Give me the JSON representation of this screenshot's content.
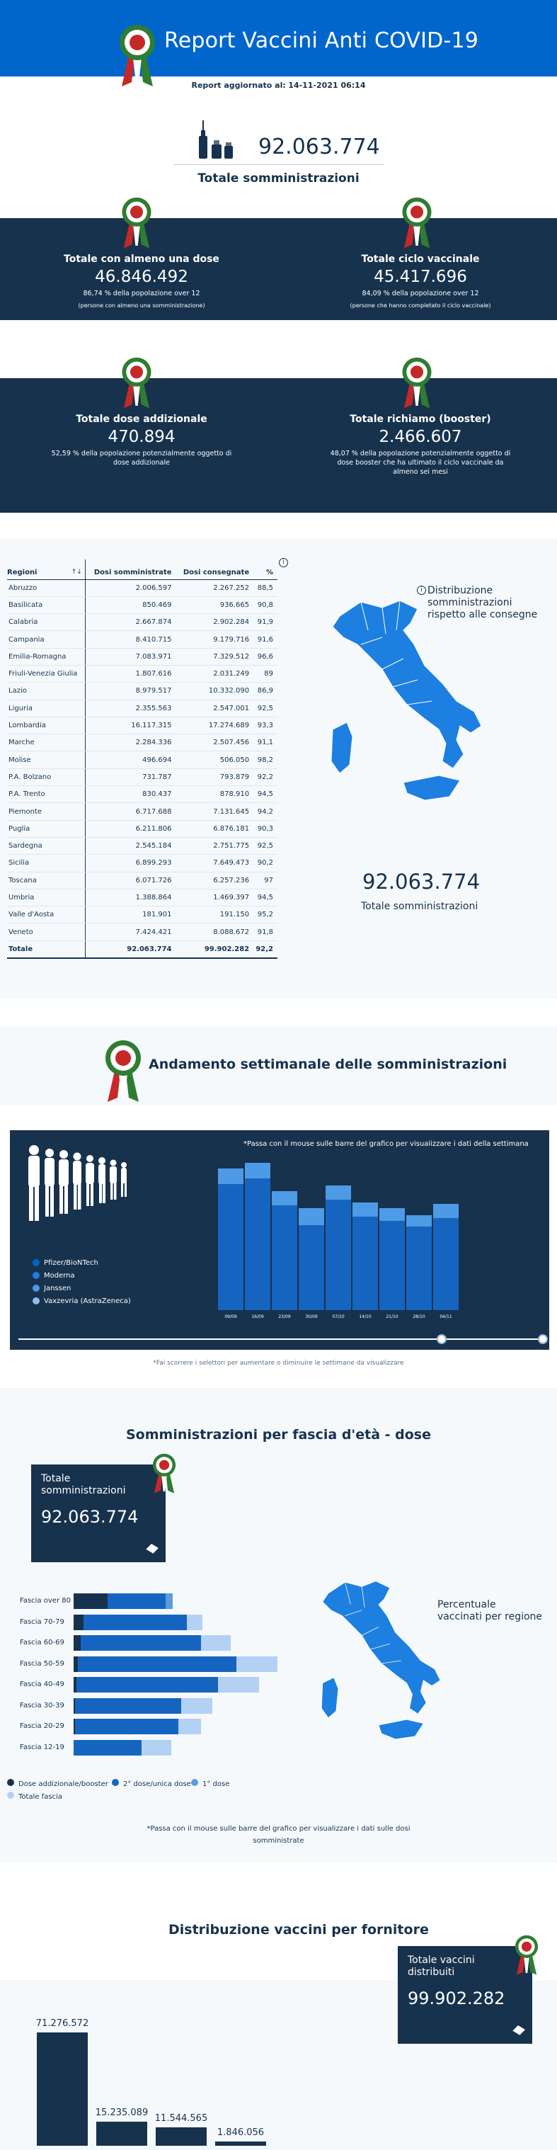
{
  "header": {
    "title": "Report Vaccini Anti COVID-19",
    "updated_label": "Report aggiornato al:",
    "updated_value": "14-11-2021 06:14"
  },
  "totals": {
    "somministrazioni_value": "92.063.774",
    "somministrazioni_label": "Totale somministrazioni"
  },
  "cards": [
    {
      "title": "Totale con almeno una dose",
      "value": "46.846.492",
      "sub": "86,74 % della popolazione over 12",
      "note": "(persone con almeno una somministrazione)"
    },
    {
      "title": "Totale ciclo vaccinale",
      "value": "45.417.696",
      "sub": "84,09 % della popolazione over 12",
      "note": "(persone che hanno completato il ciclo vaccinale)"
    },
    {
      "title": "Totale dose addizionale",
      "value": "470.894",
      "sub": "52,59 % della popolazione potenzialmente oggetto di dose addizionale"
    },
    {
      "title": "Totale richiamo (booster)",
      "value": "2.466.607",
      "sub": "48,07 % della popolazione potenzialmente oggetto di dose booster che ha ultimato il ciclo vaccinale da almeno sei mesi"
    }
  ],
  "regions_table": {
    "headers": [
      "Regioni",
      "Dosi somministrate",
      "Dosi consegnate",
      "%"
    ],
    "rows": [
      [
        "Abruzzo",
        "2.006.597",
        "2.267.252",
        "88,5"
      ],
      [
        "Basilicata",
        "850.469",
        "936.665",
        "90,8"
      ],
      [
        "Calabria",
        "2.667.874",
        "2.902.284",
        "91,9"
      ],
      [
        "Campania",
        "8.410.715",
        "9.179.716",
        "91,6"
      ],
      [
        "Emilia-Romagna",
        "7.083.971",
        "7.329.512",
        "96,6"
      ],
      [
        "Friuli-Venezia Giulia",
        "1.807.616",
        "2.031.249",
        "89"
      ],
      [
        "Lazio",
        "8.979.517",
        "10.332.090",
        "86,9"
      ],
      [
        "Liguria",
        "2.355.563",
        "2.547.001",
        "92,5"
      ],
      [
        "Lombardia",
        "16.117.315",
        "17.274.689",
        "93,3"
      ],
      [
        "Marche",
        "2.284.336",
        "2.507.456",
        "91,1"
      ],
      [
        "Molise",
        "496.694",
        "506.050",
        "98,2"
      ],
      [
        "P.A. Bolzano",
        "731.787",
        "793.879",
        "92,2"
      ],
      [
        "P.A. Trento",
        "830.437",
        "878.910",
        "94,5"
      ],
      [
        "Piemonte",
        "6.717.688",
        "7.131.645",
        "94,2"
      ],
      [
        "Puglia",
        "6.211.806",
        "6.876.181",
        "90,3"
      ],
      [
        "Sardegna",
        "2.545.184",
        "2.751.775",
        "92,5"
      ],
      [
        "Sicilia",
        "6.899.293",
        "7.649.473",
        "90,2"
      ],
      [
        "Toscana",
        "6.071.726",
        "6.257.236",
        "97"
      ],
      [
        "Umbria",
        "1.388.864",
        "1.469.397",
        "94,5"
      ],
      [
        "Valle d'Aosta",
        "181.901",
        "191.150",
        "95,2"
      ],
      [
        "Veneto",
        "7.424.421",
        "8.088.672",
        "91,8"
      ]
    ],
    "total_row": [
      "Totale",
      "92.063.774",
      "99.902.282",
      "92,2"
    ]
  },
  "regions_map": {
    "caption": "Distribuzione somministrazioni rispetto alle consegne",
    "total_value": "92.063.774",
    "total_label": "Totale somministrazioni"
  },
  "weekly": {
    "title": "Andamento settimanale delle somministrazioni",
    "hint": "*Passa con il mouse sulle barre del grafico per visualizzare i dati della settimana",
    "legend": [
      {
        "label": "Pfizer/BioNTech",
        "color": "#0066cc"
      },
      {
        "label": "Moderna",
        "color": "#1d7fe0"
      },
      {
        "label": "Janssen",
        "color": "#4d9be6"
      },
      {
        "label": "Vaxzevria (AstraZeneca)",
        "color": "#8fbdf0"
      }
    ],
    "x_labels": [
      "09/09",
      "16/09",
      "23/09",
      "30/09",
      "07/10",
      "14/10",
      "21/10",
      "28/10",
      "04/11",
      "11/11"
    ],
    "note": "*Fai scorrere i selettori per aumentare o diminuire le settimane da visualizzare"
  },
  "age": {
    "title": "Somministrazioni per fascia d'età - dose",
    "total_label": "Totale somministrazioni",
    "total_value": "92.063.774",
    "map_caption": "Percentuale vaccinati per regione",
    "rows": [
      "Fascia over 80",
      "Fascia 70-79",
      "Fascia 60-69",
      "Fascia 50-59",
      "Fascia 40-49",
      "Fascia 30-39",
      "Fascia 20-29",
      "Fascia 12-19"
    ],
    "legend": [
      {
        "label": "Dose addizionale/booster",
        "color": "#17324d"
      },
      {
        "label": "2° dose/unica dose",
        "color": "#1565c0"
      },
      {
        "label": "1° dose",
        "color": "#5b9be0"
      },
      {
        "label": "Totale fascia",
        "color": "#b3d1f2"
      }
    ],
    "note_line1": "*Passa con il mouse sulle barre del grafico per visualizzare i dati sulle dosi",
    "note_line2": "somministrate"
  },
  "suppliers": {
    "title": "Distribuzione vaccini per fornitore",
    "total_label": "Totale vaccini distribuiti",
    "total_value": "99.902.282",
    "bars": [
      {
        "label": "71.276.572",
        "value": 71276572
      },
      {
        "label": "15.235.089",
        "value": 15235089
      },
      {
        "label": "11.544.565",
        "value": 11544565
      },
      {
        "label": "1.846.056",
        "value": 1846056
      }
    ]
  }
}
